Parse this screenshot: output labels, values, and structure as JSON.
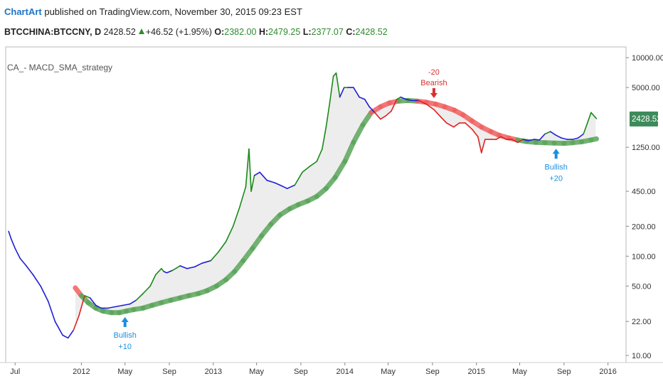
{
  "header": {
    "brand": "ChartArt",
    "published_text": " published on TradingView.com, November 30, 2015 09:23 EST",
    "symbol": "BTCCHINA:BTCCNY, D",
    "last": "2428.52",
    "change": "+46.52 (+1.95%)",
    "o_label": "O:",
    "o_value": "2382.00",
    "h_label": "H:",
    "h_value": "2479.25",
    "l_label": "L:",
    "l_value": "2377.07",
    "c_label": "C:",
    "c_value": "2428.52"
  },
  "indicator_title": "CA_- MACD_SMA_strategy",
  "price_badge": "2428.52",
  "colors": {
    "price_blue": "#1f1fd6",
    "price_green": "#1a8a1a",
    "price_red": "#e02020",
    "sma_green": "#5aa55a",
    "sma_red": "#f06060",
    "badge_bg": "#3d8a5a",
    "bull_blue": "#1a8fe0",
    "bear_red": "#d93030",
    "fill_gray": "#e8e8e8"
  },
  "chart_data": {
    "type": "line",
    "title": "",
    "y_scale": "log",
    "ylim": [
      10,
      12000
    ],
    "y_ticks": [
      {
        "label": "10000.00",
        "value": 10000
      },
      {
        "label": "5000.00",
        "value": 5000
      },
      {
        "label": "1250.00",
        "value": 1250
      },
      {
        "label": "450.00",
        "value": 450
      },
      {
        "label": "200.00",
        "value": 200
      },
      {
        "label": "100.00",
        "value": 100
      },
      {
        "label": "50.00",
        "value": 50
      },
      {
        "label": "22.00",
        "value": 22
      },
      {
        "label": "10.00",
        "value": 10
      }
    ],
    "x_ticks": [
      "Jul",
      "2012",
      "May",
      "Sep",
      "2013",
      "May",
      "Sep",
      "2014",
      "May",
      "Sep",
      "2015",
      "May",
      "Sep",
      "2016"
    ],
    "series": [
      {
        "key": "price",
        "x": [
          "2011-06-13",
          "2011-06-20",
          "2011-07-01",
          "2011-07-15",
          "2011-08-01",
          "2011-08-20",
          "2011-09-10",
          "2011-10-01",
          "2011-10-20",
          "2011-11-10",
          "2011-11-25",
          "2011-12-10",
          "2011-12-25",
          "2012-01-10",
          "2012-01-25",
          "2012-02-10",
          "2012-02-25",
          "2012-03-15",
          "2012-04-05",
          "2012-04-25",
          "2012-05-15",
          "2012-06-01",
          "2012-06-20",
          "2012-07-10",
          "2012-07-25",
          "2012-08-10",
          "2012-08-17",
          "2012-08-25",
          "2012-09-10",
          "2012-10-01",
          "2012-10-20",
          "2012-11-10",
          "2012-12-01",
          "2012-12-25",
          "2013-01-15",
          "2013-02-05",
          "2013-02-25",
          "2013-03-15",
          "2013-04-01",
          "2013-04-10",
          "2013-04-16",
          "2013-04-25",
          "2013-05-10",
          "2013-05-30",
          "2013-06-20",
          "2013-07-05",
          "2013-07-25",
          "2013-08-15",
          "2013-09-05",
          "2013-09-25",
          "2013-10-15",
          "2013-10-30",
          "2013-11-10",
          "2013-11-20",
          "2013-11-30",
          "2013-12-08",
          "2013-12-18",
          "2013-12-30",
          "2014-01-10",
          "2014-01-25",
          "2014-02-10",
          "2014-02-25",
          "2014-03-10",
          "2014-03-25",
          "2014-04-10",
          "2014-04-25",
          "2014-05-10",
          "2014-05-25",
          "2014-06-05",
          "2014-06-20",
          "2014-07-05",
          "2014-07-25",
          "2014-08-15",
          "2014-09-05",
          "2014-09-25",
          "2014-10-10",
          "2014-10-30",
          "2014-11-15",
          "2014-12-01",
          "2014-12-20",
          "2015-01-05",
          "2015-01-15",
          "2015-01-25",
          "2015-02-10",
          "2015-02-25",
          "2015-03-10",
          "2015-03-25",
          "2015-04-10",
          "2015-04-25",
          "2015-05-10",
          "2015-05-25",
          "2015-06-10",
          "2015-06-25",
          "2015-07-10",
          "2015-07-25",
          "2015-08-10",
          "2015-08-25",
          "2015-09-10",
          "2015-09-25",
          "2015-10-10",
          "2015-10-25",
          "2015-11-05",
          "2015-11-15",
          "2015-11-30"
        ],
        "values": [
          178,
          150,
          120,
          95,
          80,
          65,
          50,
          35,
          22,
          16,
          15,
          18,
          25,
          40,
          38,
          32,
          30,
          30,
          31,
          32,
          33,
          36,
          42,
          50,
          65,
          75,
          70,
          68,
          72,
          80,
          75,
          78,
          85,
          90,
          110,
          140,
          200,
          310,
          500,
          1200,
          450,
          650,
          700,
          580,
          550,
          520,
          480,
          520,
          700,
          800,
          900,
          1200,
          2000,
          3500,
          6500,
          7000,
          4000,
          5000,
          5000,
          5000,
          4000,
          3800,
          3200,
          2800,
          2400,
          2600,
          2900,
          3800,
          4000,
          3800,
          3700,
          3700,
          3400,
          3000,
          2500,
          2200,
          2000,
          2200,
          2200,
          1900,
          1600,
          1100,
          1500,
          1500,
          1500,
          1600,
          1500,
          1500,
          1400,
          1500,
          1460,
          1500,
          1480,
          1700,
          1800,
          1650,
          1550,
          1500,
          1500,
          1550,
          1700,
          2200,
          2800,
          2428.52
        ]
      },
      {
        "key": "sma",
        "x": [
          "2011-12-15",
          "2012-01-01",
          "2012-01-20",
          "2012-02-10",
          "2012-03-01",
          "2012-03-25",
          "2012-04-15",
          "2012-05-05",
          "2012-05-25",
          "2012-06-20",
          "2012-07-15",
          "2012-08-10",
          "2012-09-05",
          "2012-10-01",
          "2012-10-25",
          "2012-11-20",
          "2012-12-15",
          "2013-01-10",
          "2013-02-05",
          "2013-03-01",
          "2013-03-25",
          "2013-04-20",
          "2013-05-15",
          "2013-06-10",
          "2013-07-05",
          "2013-08-01",
          "2013-08-25",
          "2013-09-20",
          "2013-10-15",
          "2013-11-10",
          "2013-12-05",
          "2014-01-01",
          "2014-01-25",
          "2014-02-20",
          "2014-03-15",
          "2014-04-10",
          "2014-05-05",
          "2014-05-30",
          "2014-06-25",
          "2014-07-20",
          "2014-08-15",
          "2014-09-10",
          "2014-10-05",
          "2014-11-01",
          "2014-11-25",
          "2014-12-20",
          "2015-01-15",
          "2015-02-10",
          "2015-03-05",
          "2015-04-01",
          "2015-04-25",
          "2015-05-20",
          "2015-06-15",
          "2015-07-10",
          "2015-08-05",
          "2015-09-01",
          "2015-09-25",
          "2015-10-20",
          "2015-11-15",
          "2015-11-30"
        ],
        "values": [
          48,
          40,
          34,
          30,
          28,
          27,
          27,
          28,
          29,
          30,
          32,
          34,
          36,
          38,
          40,
          42,
          45,
          50,
          58,
          70,
          90,
          120,
          160,
          210,
          260,
          300,
          330,
          360,
          400,
          480,
          620,
          900,
          1400,
          2100,
          2800,
          3200,
          3500,
          3650,
          3700,
          3650,
          3550,
          3400,
          3200,
          2950,
          2650,
          2300,
          2000,
          1800,
          1650,
          1550,
          1480,
          1430,
          1400,
          1390,
          1380,
          1370,
          1390,
          1420,
          1480,
          1520
        ]
      }
    ],
    "annotations": [
      {
        "type": "bullish",
        "x": "2012-05-01",
        "label_top": "Bullish",
        "label_bottom": "+10"
      },
      {
        "type": "bearish",
        "x": "2014-09-05",
        "label_top": "-20",
        "label_bottom": "Bearish"
      },
      {
        "type": "bullish",
        "x": "2015-08-10",
        "label_top": "Bullish",
        "label_bottom": "+20"
      }
    ]
  }
}
